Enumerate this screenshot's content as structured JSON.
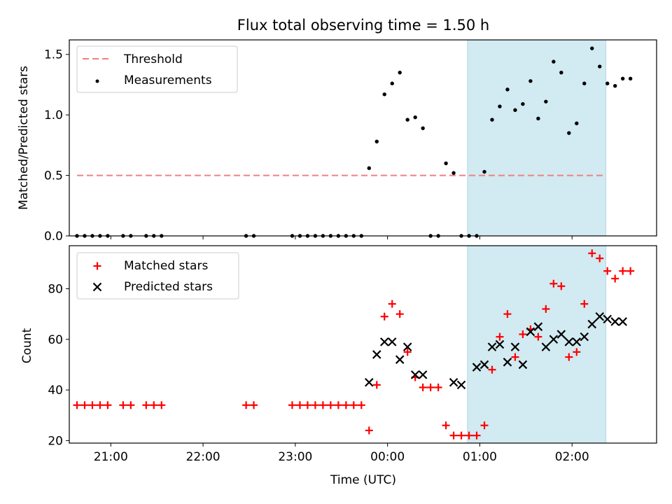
{
  "title": "Flux total observing time = 1.50 h",
  "xlabel": "Time (UTC)",
  "xticks": [
    "21:00",
    "22:00",
    "23:00",
    "00:00",
    "01:00",
    "02:00"
  ],
  "colors": {
    "threshold": "#f08080",
    "measurements": "#000000",
    "matched": "#ff0000",
    "predicted": "#000000",
    "span": "#add8e6"
  },
  "chart_data": [
    {
      "type": "scatter",
      "ylabel": "Matched/Predicted stars",
      "ylim": [
        0,
        1.62
      ],
      "yticks": [
        "0.0",
        "0.5",
        "1.0",
        "1.5"
      ],
      "xlim": [
        "20:33",
        "02:55"
      ],
      "highlight_span": [
        "00:52",
        "02:22"
      ],
      "legend_position": "top-left",
      "legend": {
        "threshold": "Threshold",
        "measurements": "Measurements"
      },
      "threshold": {
        "value": 0.5,
        "x": [
          "20:38",
          "02:20"
        ]
      },
      "measurements": {
        "x": [
          "20:38",
          "20:43",
          "20:48",
          "20:53",
          "20:58",
          "21:08",
          "21:13",
          "21:23",
          "21:28",
          "21:33",
          "22:28",
          "22:33",
          "22:58",
          "23:03",
          "23:08",
          "23:13",
          "23:18",
          "23:23",
          "23:28",
          "23:33",
          "23:38",
          "23:43",
          "23:48",
          "23:53",
          "23:58",
          "00:03",
          "00:08",
          "00:13",
          "00:18",
          "00:23",
          "00:28",
          "00:33",
          "00:38",
          "00:43",
          "00:48",
          "00:53",
          "00:58",
          "01:03",
          "01:08",
          "01:13",
          "01:18",
          "01:23",
          "01:28",
          "01:33",
          "01:38",
          "01:43",
          "01:48",
          "01:53",
          "01:58",
          "02:03",
          "02:08",
          "02:13",
          "02:18",
          "02:23",
          "02:28",
          "02:33",
          "02:38"
        ],
        "y": [
          0,
          0,
          0,
          0,
          0,
          0,
          0,
          0,
          0,
          0,
          0,
          0,
          0,
          0,
          0,
          0,
          0,
          0,
          0,
          0,
          0,
          0,
          0.56,
          0.78,
          1.17,
          1.26,
          1.35,
          0.96,
          0.98,
          0.89,
          0,
          0,
          0.6,
          0.52,
          0,
          0,
          0,
          0.53,
          0.96,
          1.07,
          1.21,
          1.04,
          1.09,
          1.28,
          0.97,
          1.11,
          1.44,
          1.35,
          0.85,
          0.93,
          1.26,
          1.55,
          1.4,
          1.26,
          1.24,
          1.3,
          1.3
        ]
      }
    },
    {
      "type": "scatter",
      "ylabel": "Count",
      "ylim": [
        19,
        97
      ],
      "yticks": [
        "20",
        "40",
        "60",
        "80"
      ],
      "xlim": [
        "20:33",
        "02:55"
      ],
      "highlight_span": [
        "00:52",
        "02:22"
      ],
      "legend_position": "top-left",
      "series": [
        {
          "name": "Matched stars",
          "x": [
            "20:38",
            "20:43",
            "20:48",
            "20:53",
            "20:58",
            "21:08",
            "21:13",
            "21:23",
            "21:28",
            "21:33",
            "22:28",
            "22:33",
            "22:58",
            "23:03",
            "23:08",
            "23:13",
            "23:18",
            "23:23",
            "23:28",
            "23:33",
            "23:38",
            "23:43",
            "23:48",
            "23:53",
            "23:58",
            "00:03",
            "00:08",
            "00:13",
            "00:18",
            "00:23",
            "00:28",
            "00:33",
            "00:38",
            "00:43",
            "00:48",
            "00:53",
            "00:58",
            "01:03",
            "01:08",
            "01:13",
            "01:18",
            "01:23",
            "01:28",
            "01:33",
            "01:38",
            "01:43",
            "01:48",
            "01:53",
            "01:58",
            "02:03",
            "02:08",
            "02:13",
            "02:18",
            "02:23",
            "02:28",
            "02:33",
            "02:38"
          ],
          "values": [
            34,
            34,
            34,
            34,
            34,
            34,
            34,
            34,
            34,
            34,
            34,
            34,
            34,
            34,
            34,
            34,
            34,
            34,
            34,
            34,
            34,
            34,
            24,
            42,
            69,
            74,
            70,
            55,
            45,
            41,
            41,
            41,
            26,
            22,
            22,
            22,
            22,
            26,
            48,
            61,
            70,
            53,
            62,
            64,
            61,
            72,
            82,
            81,
            53,
            55,
            74,
            94,
            92,
            87,
            84,
            87,
            87
          ]
        },
        {
          "name": "Predicted stars",
          "x": [
            "23:48",
            "23:53",
            "23:58",
            "00:03",
            "00:08",
            "00:13",
            "00:18",
            "00:23",
            "00:43",
            "00:48",
            "00:58",
            "01:03",
            "01:08",
            "01:13",
            "01:18",
            "01:23",
            "01:28",
            "01:33",
            "01:38",
            "01:43",
            "01:48",
            "01:53",
            "01:58",
            "02:03",
            "02:08",
            "02:13",
            "02:18",
            "02:23",
            "02:28",
            "02:33"
          ],
          "values": [
            43,
            54,
            59,
            59,
            52,
            57,
            46,
            46,
            43,
            42,
            49,
            50,
            57,
            58,
            51,
            57,
            50,
            63,
            65,
            57,
            60,
            62,
            59,
            59,
            61,
            66,
            69,
            68,
            67,
            67
          ]
        }
      ]
    }
  ]
}
